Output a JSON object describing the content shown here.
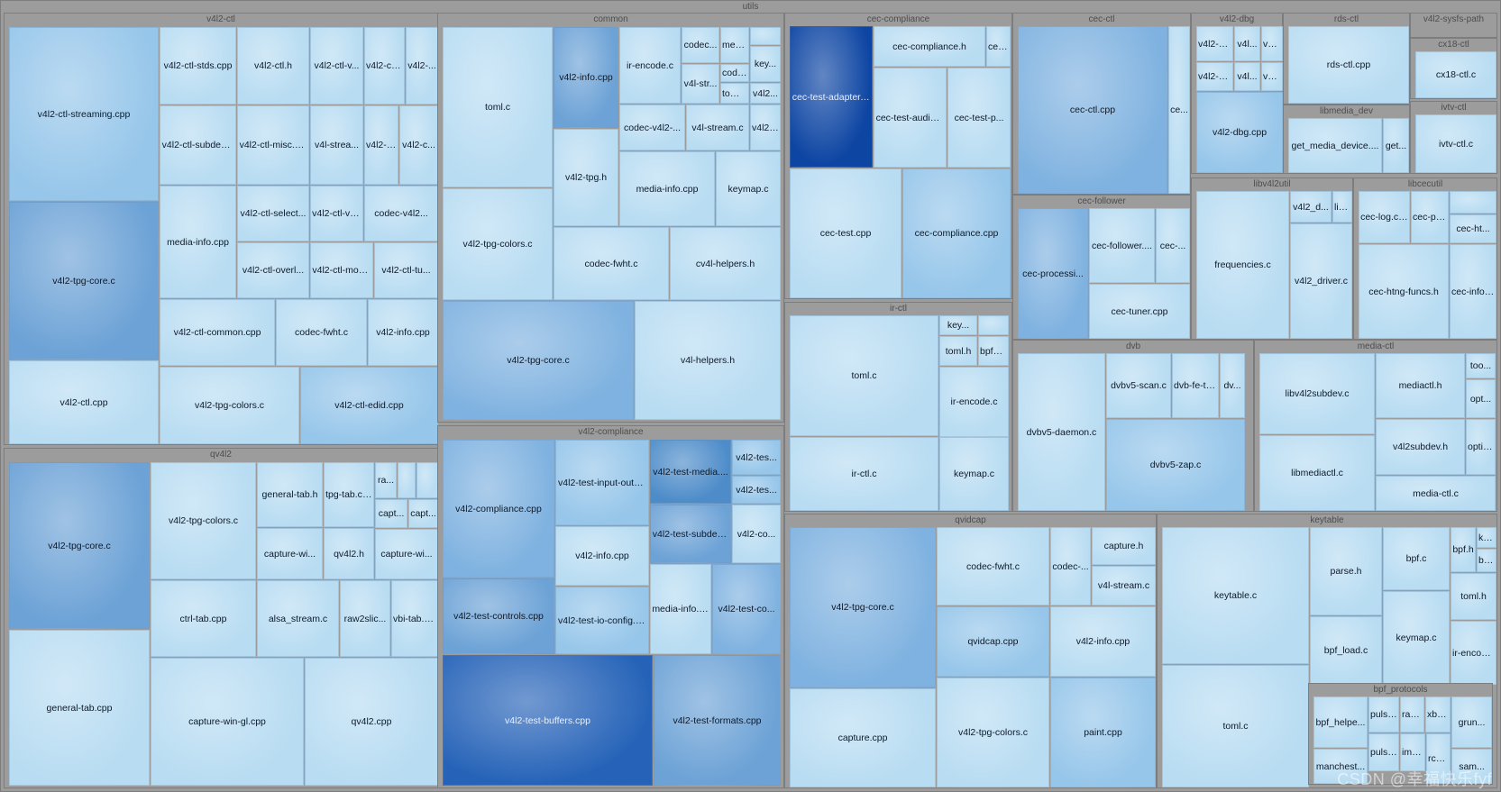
{
  "root": {
    "title": "utils"
  },
  "groups": [
    {
      "id": "v4l2ctl",
      "title": "v4l2-ctl",
      "cells": [
        {
          "label": "v4l2-ctl-streaming.cpp",
          "shade": 2
        },
        {
          "label": "v4l2-ctl-stds.cpp",
          "shade": 1
        },
        {
          "label": "v4l2-ctl.h",
          "shade": 1
        },
        {
          "label": "v4l2-ctl-v...",
          "shade": 1
        },
        {
          "label": "v4l2-ctl...",
          "shade": 1
        },
        {
          "label": "v4l2-...",
          "shade": 1
        },
        {
          "label": "v4l2-ctl-subdev....",
          "shade": 1
        },
        {
          "label": "v4l2-ctl-misc.c...",
          "shade": 1
        },
        {
          "label": "v4l-strea...",
          "shade": 1
        },
        {
          "label": "v4l2-c...",
          "shade": 1
        },
        {
          "label": "v4l2-c...",
          "shade": 1
        },
        {
          "label": "v4l2-ctl-select...",
          "shade": 1
        },
        {
          "label": "v4l2-ctl-vidc...",
          "shade": 1
        },
        {
          "label": "codec-v4l2...",
          "shade": 1
        },
        {
          "label": "v4l2-tpg-core.c",
          "shade": 4
        },
        {
          "label": "media-info.cpp",
          "shade": 1
        },
        {
          "label": "v4l2-ctl-overl...",
          "shade": 1
        },
        {
          "label": "v4l2-ctl-mode...",
          "shade": 1
        },
        {
          "label": "v4l2-ctl-tu...",
          "shade": 1
        },
        {
          "label": "v4l2-ctl-common.cpp",
          "shade": 1
        },
        {
          "label": "codec-fwht.c",
          "shade": 1
        },
        {
          "label": "v4l2-info.cpp",
          "shade": 1
        },
        {
          "label": "v4l2-ctl.cpp",
          "shade": 1
        },
        {
          "label": "v4l2-tpg-colors.c",
          "shade": 1
        },
        {
          "label": "v4l2-ctl-edid.cpp",
          "shade": 2
        }
      ]
    },
    {
      "id": "qv4l2",
      "title": "qv4l2",
      "cells": [
        {
          "label": "v4l2-tpg-core.c",
          "shade": 4
        },
        {
          "label": "v4l2-tpg-colors.c",
          "shade": 1
        },
        {
          "label": "general-tab.h",
          "shade": 1
        },
        {
          "label": "tpg-tab.cpp",
          "shade": 1
        },
        {
          "label": "ra...",
          "shade": 1
        },
        {
          "label": "",
          "shade": 1
        },
        {
          "label": "",
          "shade": 1
        },
        {
          "label": "capt...",
          "shade": 1
        },
        {
          "label": "capt...",
          "shade": 1
        },
        {
          "label": "capture-wi...",
          "shade": 1
        },
        {
          "label": "qv4l2.h",
          "shade": 1
        },
        {
          "label": "capture-wi...",
          "shade": 1
        },
        {
          "label": "ctrl-tab.cpp",
          "shade": 1
        },
        {
          "label": "alsa_stream.c",
          "shade": 1
        },
        {
          "label": "raw2slic...",
          "shade": 1
        },
        {
          "label": "vbi-tab.c...",
          "shade": 1
        },
        {
          "label": "general-tab.cpp",
          "shade": 1
        },
        {
          "label": "capture-win-gl.cpp",
          "shade": 1
        },
        {
          "label": "qv4l2.cpp",
          "shade": 1
        }
      ]
    },
    {
      "id": "common",
      "title": "common",
      "cells": [
        {
          "label": "toml.c",
          "shade": 1
        },
        {
          "label": "v4l2-info.cpp",
          "shade": 4
        },
        {
          "label": "ir-encode.c",
          "shade": 1
        },
        {
          "label": "codec...",
          "shade": 1
        },
        {
          "label": "medi...",
          "shade": 1
        },
        {
          "label": "code...",
          "shade": 1
        },
        {
          "label": "",
          "shade": 1
        },
        {
          "label": "key...",
          "shade": 1
        },
        {
          "label": "v4l-str...",
          "shade": 1
        },
        {
          "label": "toml.h",
          "shade": 1
        },
        {
          "label": "v4l2...",
          "shade": 1
        },
        {
          "label": "codec-v4l2-...",
          "shade": 1
        },
        {
          "label": "v4l-stream.c",
          "shade": 1
        },
        {
          "label": "v4l2-pi...",
          "shade": 1
        },
        {
          "label": "v4l2-tpg.h",
          "shade": 1
        },
        {
          "label": "media-info.cpp",
          "shade": 1
        },
        {
          "label": "keymap.c",
          "shade": 1
        },
        {
          "label": "v4l2-tpg-colors.c",
          "shade": 1
        },
        {
          "label": "codec-fwht.c",
          "shade": 1
        },
        {
          "label": "cv4l-helpers.h",
          "shade": 1
        },
        {
          "label": "v4l2-tpg-core.c",
          "shade": 3
        },
        {
          "label": "v4l-helpers.h",
          "shade": 1
        }
      ]
    },
    {
      "id": "v4l2compliance",
      "title": "v4l2-compliance",
      "cells": [
        {
          "label": "v4l2-compliance.cpp",
          "shade": 3
        },
        {
          "label": "v4l2-test-input-outp...",
          "shade": 2
        },
        {
          "label": "v4l2-test-media....",
          "shade": 5
        },
        {
          "label": "v4l2-tes...",
          "shade": 2
        },
        {
          "label": "v4l2-tes...",
          "shade": 2
        },
        {
          "label": "v4l2-info.cpp",
          "shade": 1
        },
        {
          "label": "v4l2-test-subdev...",
          "shade": 4
        },
        {
          "label": "v4l2-co...",
          "shade": 1
        },
        {
          "label": "v4l2-test-controls.cpp",
          "shade": 4
        },
        {
          "label": "v4l2-test-io-config.cpp",
          "shade": 2
        },
        {
          "label": "media-info.c...",
          "shade": 1
        },
        {
          "label": "v4l2-test-co...",
          "shade": 3
        },
        {
          "label": "v4l2-test-buffers.cpp",
          "shade": 7
        },
        {
          "label": "v4l2-test-formats.cpp",
          "shade": 4
        }
      ]
    },
    {
      "id": "ceccompliance",
      "title": "cec-compliance",
      "cells": [
        {
          "label": "cec-test-adapter....",
          "shade": 8
        },
        {
          "label": "cec-compliance.h",
          "shade": 1
        },
        {
          "label": "cec...",
          "shade": 1
        },
        {
          "label": "cec-test-audio....",
          "shade": 1
        },
        {
          "label": "cec-test-p...",
          "shade": 1
        },
        {
          "label": "cec-test.cpp",
          "shade": 1
        },
        {
          "label": "cec-compliance.cpp",
          "shade": 2
        }
      ]
    },
    {
      "id": "irctl",
      "title": "ir-ctl",
      "cells": [
        {
          "label": "toml.c",
          "shade": 1
        },
        {
          "label": "key...",
          "shade": 1
        },
        {
          "label": "",
          "shade": 1
        },
        {
          "label": "toml.h",
          "shade": 1
        },
        {
          "label": "bpf_e...",
          "shade": 1
        },
        {
          "label": "ir-encode.c",
          "shade": 1
        },
        {
          "label": "ir-ctl.c",
          "shade": 1
        },
        {
          "label": "keymap.c",
          "shade": 1
        }
      ]
    },
    {
      "id": "cecctl",
      "title": "cec-ctl",
      "cells": [
        {
          "label": "cec-ctl.cpp",
          "shade": 3
        },
        {
          "label": "ce...",
          "shade": 1
        }
      ]
    },
    {
      "id": "v4l2dbg",
      "title": "v4l2-dbg",
      "cells": [
        {
          "label": "v4l2-d...",
          "shade": 1
        },
        {
          "label": "v4l...",
          "shade": 1
        },
        {
          "label": "v4l...",
          "shade": 1
        },
        {
          "label": "v4l2-d...",
          "shade": 1
        },
        {
          "label": "v4l...",
          "shade": 1
        },
        {
          "label": "v4l...",
          "shade": 1
        },
        {
          "label": "v4l2-dbg.cpp",
          "shade": 2
        }
      ]
    },
    {
      "id": "rdsctl",
      "title": "rds-ctl",
      "cells": [
        {
          "label": "rds-ctl.cpp",
          "shade": 1
        }
      ]
    },
    {
      "id": "v4l2sysfs",
      "title": "v4l2-sysfs-path",
      "cells": []
    },
    {
      "id": "cx18ctl",
      "title": "cx18-ctl",
      "cells": [
        {
          "label": "cx18-ctl.c",
          "shade": 1
        }
      ]
    },
    {
      "id": "libmediadev",
      "title": "libmedia_dev",
      "cells": [
        {
          "label": "get_media_device....",
          "shade": 1
        },
        {
          "label": "get...",
          "shade": 1
        }
      ]
    },
    {
      "id": "ivtvctl",
      "title": "ivtv-ctl",
      "cells": [
        {
          "label": "ivtv-ctl.c",
          "shade": 1
        }
      ]
    },
    {
      "id": "cecfollower",
      "title": "cec-follower",
      "cells": [
        {
          "label": "cec-processi...",
          "shade": 3
        },
        {
          "label": "cec-follower....",
          "shade": 1
        },
        {
          "label": "cec-...",
          "shade": 1
        },
        {
          "label": "cec-tuner.cpp",
          "shade": 1
        }
      ]
    },
    {
      "id": "libv4l2util",
      "title": "libv4l2util",
      "cells": [
        {
          "label": "frequencies.c",
          "shade": 1
        },
        {
          "label": "v4l2_d...",
          "shade": 1
        },
        {
          "label": "lib...",
          "shade": 1
        },
        {
          "label": "v4l2_driver.c",
          "shade": 1
        }
      ]
    },
    {
      "id": "libcecutil",
      "title": "libcecutil",
      "cells": [
        {
          "label": "cec-log.cpp",
          "shade": 1
        },
        {
          "label": "cec-pa...",
          "shade": 1
        },
        {
          "label": "",
          "shade": 1
        },
        {
          "label": "cec-ht...",
          "shade": 1
        },
        {
          "label": "cec-htng-funcs.h",
          "shade": 1
        },
        {
          "label": "cec-info....",
          "shade": 1
        }
      ]
    },
    {
      "id": "dvb",
      "title": "dvb",
      "cells": [
        {
          "label": "dvbv5-daemon.c",
          "shade": 1
        },
        {
          "label": "dvbv5-scan.c",
          "shade": 1
        },
        {
          "label": "dvb-fe-to...",
          "shade": 1
        },
        {
          "label": "dv...",
          "shade": 1
        },
        {
          "label": "dvbv5-zap.c",
          "shade": 2
        }
      ]
    },
    {
      "id": "mediactl",
      "title": "media-ctl",
      "cells": [
        {
          "label": "libv4l2subdev.c",
          "shade": 1
        },
        {
          "label": "mediactl.h",
          "shade": 1
        },
        {
          "label": "too...",
          "shade": 1
        },
        {
          "label": "opt...",
          "shade": 1
        },
        {
          "label": "options.c",
          "shade": 1
        },
        {
          "label": "v4l2subdev.h",
          "shade": 1
        },
        {
          "label": "libmediactl.c",
          "shade": 1
        },
        {
          "label": "media-ctl.c",
          "shade": 1
        }
      ]
    },
    {
      "id": "qvidcap",
      "title": "qvidcap",
      "cells": [
        {
          "label": "v4l2-tpg-core.c",
          "shade": 3
        },
        {
          "label": "codec-fwht.c",
          "shade": 1
        },
        {
          "label": "codec-...",
          "shade": 1
        },
        {
          "label": "capture.h",
          "shade": 1
        },
        {
          "label": "v4l-stream.c",
          "shade": 1
        },
        {
          "label": "qvidcap.cpp",
          "shade": 2
        },
        {
          "label": "v4l2-info.cpp",
          "shade": 1
        },
        {
          "label": "capture.cpp",
          "shade": 1
        },
        {
          "label": "v4l2-tpg-colors.c",
          "shade": 1
        },
        {
          "label": "paint.cpp",
          "shade": 2
        }
      ]
    },
    {
      "id": "keytable",
      "title": "keytable",
      "cells": [
        {
          "label": "keytable.c",
          "shade": 1
        },
        {
          "label": "parse.h",
          "shade": 1
        },
        {
          "label": "bpf.c",
          "shade": 1
        },
        {
          "label": "bpf.h",
          "shade": 1
        },
        {
          "label": "ke...",
          "shade": 1
        },
        {
          "label": "bp...",
          "shade": 1
        },
        {
          "label": "toml.h",
          "shade": 1
        },
        {
          "label": "bpf_load.c",
          "shade": 1
        },
        {
          "label": "keymap.c",
          "shade": 1
        },
        {
          "label": "ir-encode.c",
          "shade": 1
        },
        {
          "label": "toml.c",
          "shade": 1
        }
      ]
    },
    {
      "id": "bpfprotocols",
      "title": "bpf_protocols",
      "cells": [
        {
          "label": "bpf_helpe...",
          "shade": 1
        },
        {
          "label": "pulse...",
          "shade": 1
        },
        {
          "label": "raw.c",
          "shade": 1
        },
        {
          "label": "xbo...",
          "shade": 1
        },
        {
          "label": "grun...",
          "shade": 1
        },
        {
          "label": "manchest...",
          "shade": 1
        },
        {
          "label": "pulse...",
          "shade": 1
        },
        {
          "label": "imon...",
          "shade": 1
        },
        {
          "label": "rc_...",
          "shade": 1
        },
        {
          "label": "sam...",
          "shade": 1
        }
      ]
    }
  ],
  "watermark": "CSDN @幸福快乐fyf",
  "colors": {
    "shade1": "#b8dcf2",
    "shade2": "#96c6ea",
    "shade3": "#7fb2e0",
    "shade4": "#6ca2d6",
    "shade5": "#4d8cc9",
    "shade7": "#2663b8",
    "shade8": "#0d45a3"
  }
}
